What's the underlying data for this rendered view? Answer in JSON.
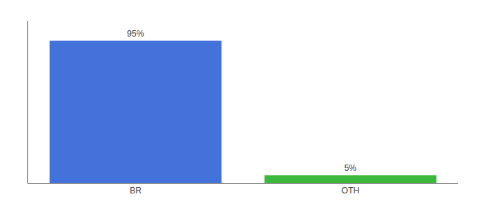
{
  "chart_data": {
    "type": "bar",
    "categories": [
      "BR",
      "OTH"
    ],
    "values": [
      95,
      5
    ],
    "value_labels": [
      "95%",
      "5%"
    ],
    "colors": [
      "#4472db",
      "#3cb83c"
    ],
    "ylim": [
      0,
      108
    ],
    "yticks": [],
    "grid": false,
    "data_labels": true,
    "tick_labels": "x"
  }
}
